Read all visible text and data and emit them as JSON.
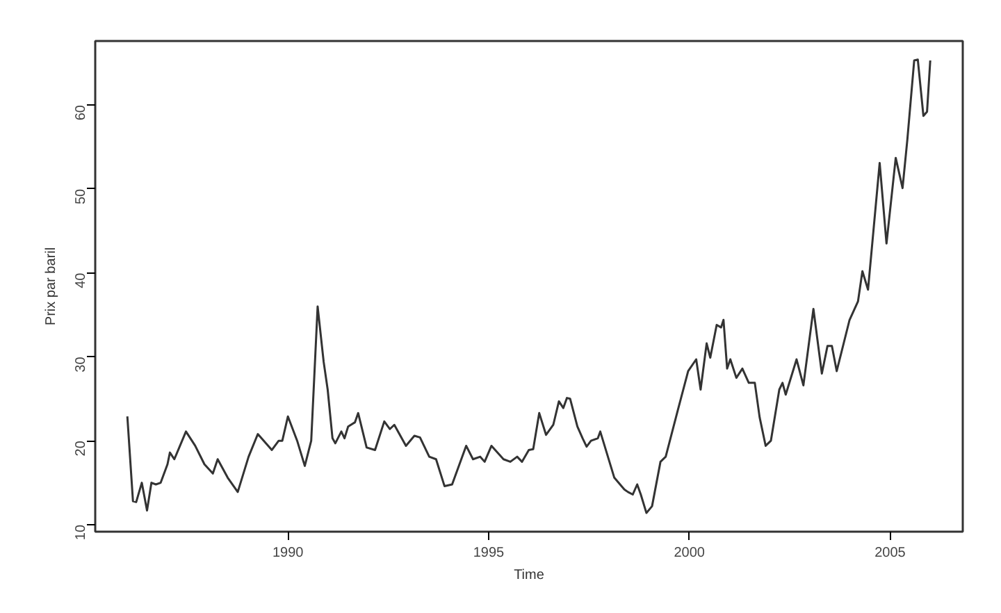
{
  "chart_data": {
    "type": "line",
    "xlabel": "Time",
    "ylabel": "Prix par baril",
    "color": "#333333",
    "grid": false,
    "x": [
      1986.0,
      1986.14,
      1986.22,
      1986.36,
      1986.49,
      1986.6,
      1986.71,
      1986.83,
      1987.0,
      1987.06,
      1987.17,
      1987.46,
      1987.69,
      1987.92,
      1988.13,
      1988.25,
      1988.5,
      1988.75,
      1989.02,
      1989.25,
      1989.6,
      1989.77,
      1989.86,
      1990.0,
      1990.23,
      1990.42,
      1990.58,
      1990.74,
      1990.89,
      1990.99,
      1991.11,
      1991.18,
      1991.33,
      1991.41,
      1991.5,
      1991.67,
      1991.75,
      1991.96,
      1992.17,
      1992.4,
      1992.54,
      1992.65,
      1992.94,
      1993.15,
      1993.29,
      1993.52,
      1993.69,
      1993.9,
      1994.09,
      1994.44,
      1994.61,
      1994.79,
      1994.9,
      1995.07,
      1995.37,
      1995.54,
      1995.71,
      1995.83,
      1996.0,
      1996.11,
      1996.26,
      1996.43,
      1996.61,
      1996.75,
      1996.86,
      1996.95,
      1997.03,
      1997.21,
      1997.34,
      1997.44,
      1997.55,
      1997.72,
      1997.78,
      1998.13,
      1998.38,
      1998.47,
      1998.59,
      1998.7,
      1998.79,
      1998.93,
      1999.07,
      1999.28,
      1999.41,
      1999.71,
      1999.97,
      2000.17,
      2000.28,
      2000.43,
      2000.52,
      2000.68,
      2000.79,
      2000.85,
      2000.94,
      2001.02,
      2001.17,
      2001.32,
      2001.48,
      2001.63,
      2001.75,
      2001.9,
      2002.03,
      2002.24,
      2002.32,
      2002.4,
      2002.67,
      2002.84,
      2003.09,
      2003.3,
      2003.44,
      2003.55,
      2003.67,
      2003.99,
      2004.2,
      2004.31,
      2004.45,
      2004.74,
      2004.91,
      2005.14,
      2005.31,
      2005.43,
      2005.6,
      2005.69,
      2005.83,
      2005.92,
      2006.0
    ],
    "values": [
      22.9,
      12.8,
      12.7,
      15.0,
      11.7,
      15.0,
      14.8,
      15.0,
      17.2,
      18.6,
      17.8,
      21.1,
      19.4,
      17.2,
      16.1,
      17.8,
      15.6,
      13.9,
      18.1,
      20.8,
      18.9,
      20.0,
      20.0,
      22.9,
      20.0,
      17.0,
      20.0,
      36.0,
      29.4,
      26.1,
      20.3,
      19.7,
      21.1,
      20.3,
      21.7,
      22.2,
      23.3,
      19.2,
      18.9,
      22.3,
      21.4,
      21.9,
      19.4,
      20.6,
      20.4,
      18.1,
      17.8,
      14.6,
      14.8,
      19.4,
      17.8,
      18.1,
      17.5,
      19.4,
      17.8,
      17.5,
      18.1,
      17.5,
      18.9,
      19.0,
      23.3,
      20.7,
      21.9,
      24.7,
      23.9,
      25.1,
      25.0,
      21.7,
      20.3,
      19.3,
      20.0,
      20.3,
      21.1,
      15.6,
      14.2,
      13.9,
      13.6,
      14.8,
      13.6,
      11.4,
      12.2,
      17.5,
      18.1,
      23.6,
      28.3,
      29.7,
      26.1,
      31.6,
      29.9,
      33.8,
      33.5,
      34.4,
      28.6,
      29.7,
      27.5,
      28.6,
      26.9,
      26.9,
      22.8,
      19.4,
      20.0,
      26.1,
      26.9,
      25.5,
      29.7,
      26.6,
      35.7,
      28.0,
      31.3,
      31.3,
      28.3,
      34.4,
      36.6,
      40.2,
      38.0,
      53.1,
      43.5,
      53.7,
      50.1,
      55.9,
      65.3,
      65.4,
      58.7,
      59.2,
      65.3
    ],
    "xlim": [
      1985.2,
      2006.81
    ],
    "ylim": [
      9.17,
      67.62
    ],
    "xticks": [
      1990,
      1995,
      2000,
      2005
    ],
    "yticks": [
      10,
      20,
      30,
      40,
      50,
      60
    ]
  }
}
